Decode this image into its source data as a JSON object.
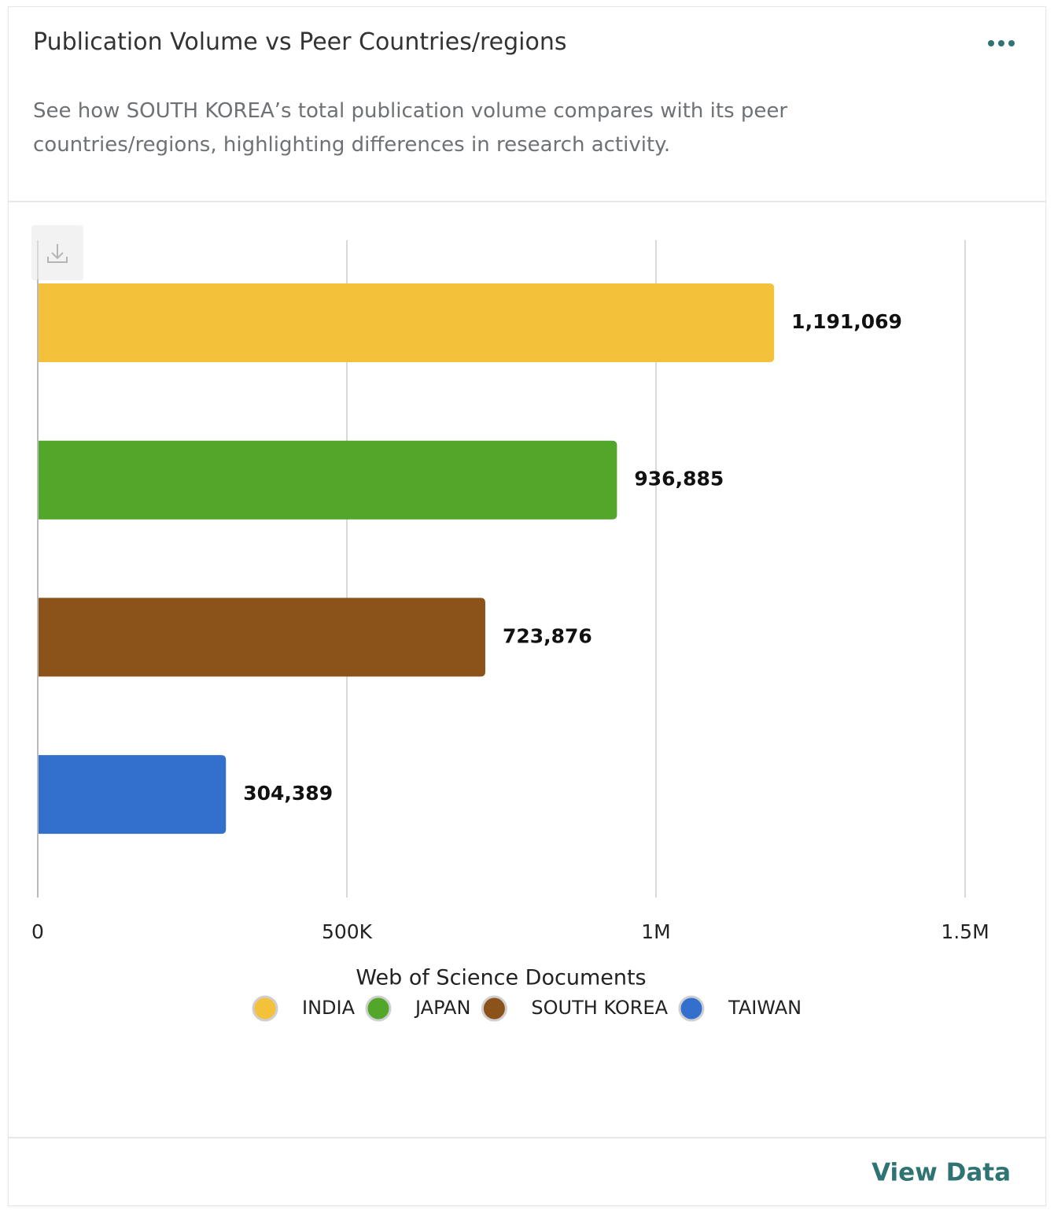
{
  "chart_data": {
    "type": "hbar",
    "title": "Publication Volume vs Peer Countries/regions",
    "subtitle": "See how SOUTH KOREA’s total publication volume compares with its peer countries/regions, highlighting differences in research activity.",
    "xlabel": "Web of Science Documents",
    "categories": [
      "INDIA",
      "JAPAN",
      "SOUTH KOREA",
      "TAIWAN"
    ],
    "values": [
      1191069,
      936885,
      723876,
      304389
    ],
    "value_labels": [
      "1,191,069",
      "936,885",
      "723,876",
      "304,389"
    ],
    "colors": [
      "#f3c13a",
      "#52a72b",
      "#8b5219",
      "#336fcc"
    ],
    "xlim": [
      0,
      1500000
    ],
    "xticks": [
      0,
      {
        "value": 500000,
        "label": "500K"
      },
      {
        "value": 1000000,
        "label": "1M"
      },
      {
        "value": 1500000,
        "label": "1.5M"
      }
    ],
    "grid": true,
    "legend": "bottom"
  },
  "footer": {
    "link": "View Data"
  }
}
